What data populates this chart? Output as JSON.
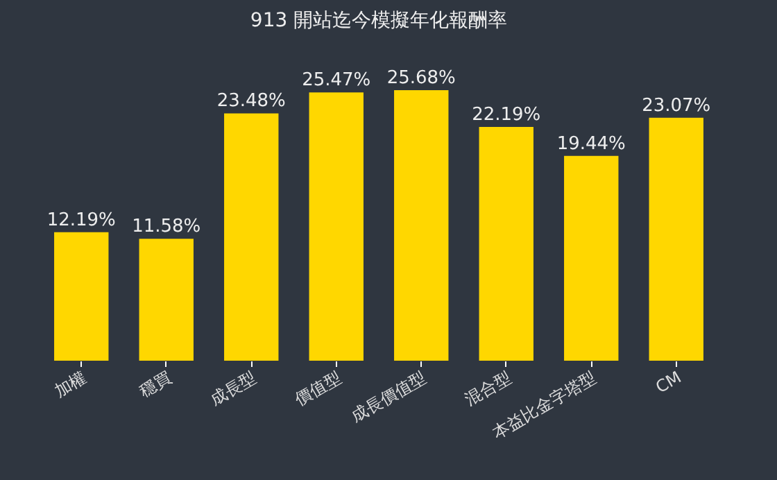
{
  "chart_data": {
    "type": "bar",
    "title": "913 開站迄今模擬年化報酬率",
    "categories": [
      "加權",
      "穩買",
      "成長型",
      "價值型",
      "成長價值型",
      "混合型",
      "本益比金字塔型",
      "CM"
    ],
    "values": [
      12.19,
      11.58,
      23.48,
      25.47,
      25.68,
      22.19,
      19.44,
      23.07
    ],
    "value_labels": [
      "12.19%",
      "11.58%",
      "23.48%",
      "25.47%",
      "25.68%",
      "22.19%",
      "19.44%",
      "23.07%"
    ],
    "color": "#ffd700",
    "grid": false,
    "tick_labels": "x"
  }
}
